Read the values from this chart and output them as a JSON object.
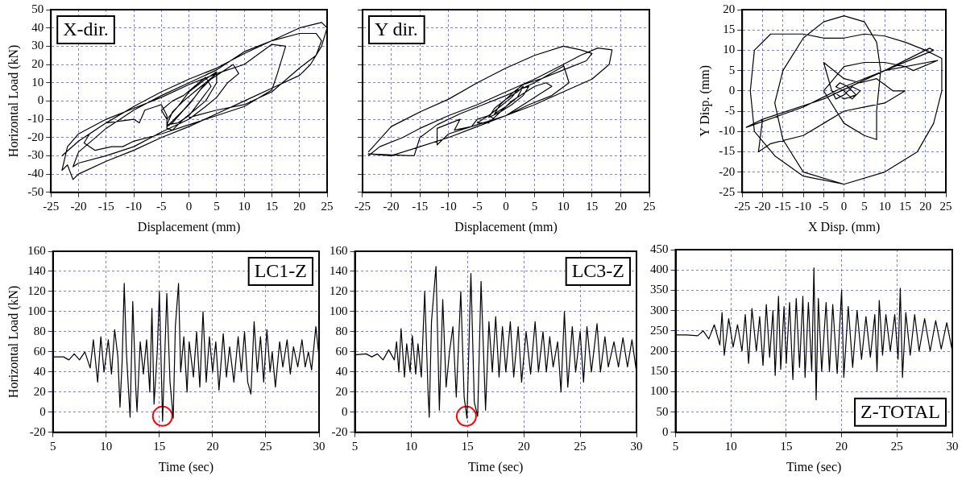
{
  "chart_data": [
    {
      "type": "line",
      "xlabel": "Displacement (mm)",
      "ylabel": "Horizontal Load (kN)",
      "annotations": [
        "X-dir."
      ],
      "xlim": [
        -25,
        25
      ],
      "xticks": [
        -25,
        -20,
        -15,
        -10,
        -5,
        0,
        5,
        10,
        15,
        20,
        25
      ],
      "ylim": [
        -50,
        50
      ],
      "yticks": [
        -50,
        -40,
        -30,
        -20,
        -10,
        0,
        10,
        20,
        30,
        40,
        50
      ],
      "grid": true,
      "marker": "none",
      "series": [
        {
          "color": "#000000",
          "x": [
            -23,
            -20,
            -15,
            -10,
            -5,
            0,
            5,
            10,
            15,
            20,
            24,
            25,
            24,
            22,
            20,
            15,
            10,
            5,
            0,
            -5,
            -10,
            -15,
            -20,
            -21,
            -22,
            -23,
            -22,
            -20,
            -15,
            -10,
            -5,
            0,
            5,
            10,
            15,
            17.5,
            16,
            15,
            10,
            5,
            0,
            -5,
            -10,
            -12,
            -14,
            -17,
            -19,
            -18,
            -15,
            -10,
            -9,
            -8,
            -6,
            -5,
            -4,
            -4,
            -3,
            -1,
            1,
            3,
            4,
            5,
            5,
            3,
            1,
            -1,
            -3,
            -4,
            -2,
            0,
            2,
            4,
            5,
            3,
            0,
            -2,
            -4,
            -5,
            -3,
            -1,
            1,
            3,
            4,
            2,
            0,
            -2,
            -4,
            -3,
            -1,
            1,
            3,
            5,
            8,
            9,
            7,
            5,
            3,
            0,
            -5,
            -10,
            -15,
            -20,
            -21,
            -20,
            -15,
            -10,
            -5,
            0,
            5,
            10,
            15,
            20,
            23,
            24,
            23,
            20,
            15,
            10,
            5,
            0
          ],
          "values": [
            -30,
            -22,
            -12,
            -3,
            5,
            12,
            18,
            26,
            33,
            40,
            43,
            40,
            30,
            20,
            14,
            7,
            0,
            -7,
            -14,
            -20,
            -27,
            -33,
            -40,
            -43,
            -35,
            -38,
            -25,
            -18,
            -10,
            -4,
            2,
            9,
            15,
            20,
            31,
            30,
            15,
            6,
            -3,
            -8,
            -13,
            -18,
            -22,
            -25,
            -25,
            -27,
            -23,
            -18,
            -12,
            -10,
            -12,
            -5,
            -3,
            -2,
            -8,
            -15,
            -16,
            -10,
            -5,
            0,
            5,
            10,
            15,
            10,
            2,
            -5,
            -12,
            -14,
            -8,
            -2,
            6,
            12,
            16,
            12,
            5,
            -3,
            -10,
            -5,
            0,
            3,
            8,
            13,
            8,
            0,
            -8,
            -12,
            -13,
            -6,
            0,
            5,
            10,
            14,
            20,
            15,
            10,
            2,
            -3,
            -10,
            -17,
            -25,
            -30,
            -34,
            -36,
            -28,
            -15,
            -5,
            3,
            10,
            17,
            27,
            33,
            37,
            37,
            33,
            25,
            18,
            5,
            -2,
            -5,
            -9
          ]
        }
      ]
    },
    {
      "type": "line",
      "xlabel": "Displacement (mm)",
      "annotations": [
        "Y dir."
      ],
      "xlim": [
        -25,
        25
      ],
      "xticks": [
        -25,
        -20,
        -15,
        -10,
        -5,
        0,
        5,
        10,
        15,
        20,
        25
      ],
      "ylim": [
        -50,
        50
      ],
      "yticks": [
        -50,
        -40,
        -30,
        -20,
        -10,
        0,
        10,
        20,
        30,
        40,
        50
      ],
      "tick_labels": "x",
      "grid": true,
      "marker": "none",
      "series": [
        {
          "color": "#000000",
          "x": [
            -24,
            -22,
            -18,
            -15,
            -10,
            -5,
            0,
            5,
            10,
            13,
            16,
            18.5,
            18,
            15,
            10,
            5,
            0,
            -5,
            -10,
            -15,
            -20,
            -24,
            -16,
            -15,
            -12,
            -8,
            -4,
            0,
            5,
            10,
            10,
            11,
            8,
            4,
            0,
            -5,
            -10,
            -12,
            -12,
            -8,
            -9,
            -6,
            -5,
            -3,
            -5,
            -3,
            -1,
            1,
            3,
            5,
            7,
            8,
            6,
            4,
            2,
            0,
            -2,
            -3,
            -1,
            1,
            2,
            4,
            3,
            1,
            -1,
            -3,
            -2,
            0,
            2,
            3,
            2,
            0,
            -2,
            -1,
            1,
            3,
            6,
            10,
            14,
            15,
            13,
            10,
            5,
            0,
            -5,
            -10,
            -15,
            -20,
            -24
          ],
          "values": [
            -30,
            -25,
            -20,
            -15,
            -8,
            -2,
            5,
            12,
            20,
            25,
            29,
            28,
            20,
            12,
            5,
            -2,
            -8,
            -14,
            -20,
            -25,
            -30,
            -29,
            -30,
            -20,
            -13,
            -7,
            -2,
            3,
            10,
            19,
            20,
            10,
            3,
            -2,
            -8,
            -13,
            -18,
            -24,
            -15,
            -10,
            -16,
            -14,
            -10,
            -8,
            -12,
            -12,
            -6,
            0,
            4,
            8,
            10,
            8,
            4,
            0,
            -4,
            -8,
            -10,
            -8,
            -3,
            2,
            6,
            8,
            3,
            -2,
            -6,
            -9,
            -4,
            1,
            5,
            8,
            2,
            -3,
            -7,
            -2,
            4,
            9,
            12,
            17,
            22,
            26,
            28,
            30,
            25,
            18,
            10,
            1,
            -6,
            -14,
            -28
          ]
        }
      ]
    },
    {
      "type": "line",
      "xlabel": "X Disp. (mm)",
      "ylabel": "Y Disp. (mm)",
      "xlim": [
        -25,
        25
      ],
      "xticks": [
        -25,
        -20,
        -15,
        -10,
        -5,
        0,
        5,
        10,
        15,
        20,
        25
      ],
      "ylim": [
        -25,
        20
      ],
      "yticks": [
        -25,
        -20,
        -15,
        -10,
        -5,
        0,
        5,
        10,
        15,
        20
      ],
      "grid": true,
      "marker": "none",
      "series": [
        {
          "color": "#000000",
          "x": [
            0,
            -10,
            -17,
            -22,
            -23,
            -22,
            -18,
            -10,
            -5,
            0,
            5,
            10,
            15,
            20,
            24,
            24,
            22,
            18,
            10,
            0,
            -10,
            -15,
            -17,
            -15,
            -10,
            -5,
            0,
            5,
            8,
            9,
            8,
            8,
            5,
            0,
            -5,
            0,
            5,
            10,
            15,
            17,
            23,
            10,
            -5,
            -20,
            -24,
            -10,
            0,
            10,
            22,
            21,
            10,
            -5,
            -20,
            -21,
            -18,
            -10,
            -5,
            0,
            5,
            10,
            15,
            12,
            8,
            4,
            0,
            -5,
            -3,
            -2,
            0,
            2,
            4,
            2,
            0,
            -2,
            -1,
            1,
            3,
            0,
            -3
          ],
          "values": [
            -23,
            -21,
            -16,
            -10,
            0,
            10,
            14,
            14,
            13,
            13,
            14,
            13.5,
            12,
            10,
            8,
            0,
            -8,
            -15,
            -20,
            -23,
            -20,
            -12,
            -3,
            5,
            13,
            17,
            18.5,
            17,
            12,
            5,
            -5,
            -12,
            -11,
            -8,
            0,
            6,
            7,
            7,
            6,
            5,
            7.5,
            5,
            -2,
            -7,
            -9,
            -4,
            1,
            5,
            10,
            10.5,
            5,
            -2,
            -7,
            -15,
            -13,
            -11,
            -8,
            -5,
            -4,
            -3,
            0,
            0,
            3,
            2,
            3,
            7,
            0,
            -2,
            -1,
            1,
            0,
            -2,
            0,
            1,
            2,
            1,
            -1,
            -2,
            0
          ]
        }
      ]
    },
    {
      "type": "line",
      "xlabel": "Time (sec)",
      "ylabel": "Horizontal Load (kN)",
      "annotations": [
        "LC1-Z"
      ],
      "xlim": [
        5,
        30
      ],
      "xticks": [
        5,
        10,
        15,
        20,
        25,
        30
      ],
      "ylim": [
        -20,
        160
      ],
      "yticks": [
        -20,
        0,
        20,
        40,
        60,
        80,
        100,
        120,
        140,
        160
      ],
      "grid": true,
      "marker": "none",
      "series": [
        {
          "color": "#000000",
          "x": [
            5,
            6,
            6.5,
            7,
            7.5,
            8,
            8.5,
            8.8,
            9.2,
            9.5,
            9.8,
            10.2,
            10.5,
            10.8,
            11.1,
            11.3,
            11.5,
            11.7,
            11.9,
            12.1,
            12.25,
            12.5,
            12.8,
            12.9,
            13.2,
            13.5,
            13.8,
            14.1,
            14.3,
            14.5,
            14.8,
            15,
            15.3,
            15.5,
            15.7,
            16,
            16.3,
            16.5,
            16.8,
            17,
            17.3,
            17.6,
            17.8,
            18.2,
            18.5,
            18.8,
            19.1,
            19.4,
            19.7,
            20,
            20.3,
            20.6,
            21,
            21.3,
            21.6,
            22,
            22.4,
            22.7,
            23,
            23.3,
            23.6,
            23.9,
            24.2,
            24.5,
            24.8,
            25.1,
            25.4,
            25.6,
            25.9,
            26.3,
            26.6,
            27,
            27.3,
            27.6,
            28,
            28.4,
            28.7,
            29,
            29.3,
            29.7,
            30
          ],
          "values": [
            55,
            55,
            52,
            58,
            52,
            60,
            44,
            72,
            30,
            75,
            40,
            72,
            38,
            82,
            55,
            5,
            50,
            128,
            60,
            22,
            -5,
            110,
            20,
            1,
            70,
            38,
            72,
            20,
            103,
            8,
            60,
            120,
            -9,
            55,
            118,
            30,
            -6,
            85,
            128,
            40,
            75,
            20,
            70,
            35,
            80,
            25,
            100,
            30,
            75,
            40,
            70,
            22,
            78,
            35,
            65,
            30,
            75,
            40,
            80,
            30,
            18,
            90,
            40,
            75,
            30,
            82,
            40,
            60,
            25,
            70,
            45,
            72,
            38,
            65,
            45,
            72,
            45,
            60,
            42,
            85,
            55
          ]
        },
        {
          "type": "scatter",
          "color": "#ff0000",
          "marker": "circle",
          "x": [
            15.3
          ],
          "values": [
            -4
          ]
        }
      ]
    },
    {
      "type": "line",
      "xlabel": "Time (sec)",
      "annotations": [
        "LC3-Z"
      ],
      "xlim": [
        5,
        30
      ],
      "xticks": [
        5,
        10,
        15,
        20,
        25,
        30
      ],
      "ylim": [
        -20,
        160
      ],
      "yticks": [
        -20,
        0,
        20,
        40,
        60,
        80,
        100,
        120,
        140,
        160
      ],
      "grid": true,
      "marker": "none",
      "series": [
        {
          "color": "#000000",
          "x": [
            5,
            6,
            6.5,
            7,
            7.5,
            8,
            8.5,
            8.7,
            8.9,
            9.1,
            9.4,
            9.6,
            9.9,
            10.1,
            10.4,
            10.6,
            10.9,
            11.2,
            11.5,
            11.6,
            11.8,
            12.2,
            12.5,
            12.8,
            13.1,
            13.4,
            13.7,
            14,
            14.4,
            14.7,
            14.95,
            15.3,
            15.6,
            15.9,
            16.2,
            16.6,
            16.9,
            17.2,
            17.5,
            17.8,
            18.1,
            18.4,
            18.8,
            19.1,
            19.5,
            19.8,
            20.2,
            20.6,
            21,
            21.3,
            21.7,
            22,
            22.3,
            22.6,
            23,
            23.3,
            23.6,
            23.9,
            24.3,
            24.6,
            25,
            25.3,
            25.6,
            26,
            26.5,
            26.8,
            27.2,
            27.5,
            28,
            28.4,
            28.8,
            29.2,
            29.6,
            30
          ],
          "values": [
            57,
            58,
            55,
            58,
            52,
            62,
            52,
            70,
            40,
            83,
            35,
            68,
            40,
            76,
            38,
            68,
            35,
            120,
            18,
            -5,
            90,
            145,
            2,
            112,
            25,
            60,
            85,
            15,
            120,
            15,
            -6,
            138,
            10,
            -4,
            130,
            2,
            90,
            40,
            95,
            35,
            85,
            40,
            90,
            35,
            85,
            30,
            80,
            38,
            90,
            40,
            80,
            40,
            75,
            45,
            70,
            20,
            100,
            25,
            85,
            40,
            80,
            30,
            85,
            40,
            88,
            40,
            75,
            45,
            70,
            45,
            74,
            45,
            72,
            40
          ]
        },
        {
          "type": "scatter",
          "color": "#ff0000",
          "marker": "circle",
          "x": [
            14.9
          ],
          "values": [
            -4
          ]
        }
      ]
    },
    {
      "type": "line",
      "xlabel": "Time (sec)",
      "annotations": [
        "Z-TOTAL"
      ],
      "xlim": [
        5,
        30
      ],
      "xticks": [
        5,
        10,
        15,
        20,
        25,
        30
      ],
      "ylim": [
        0,
        450
      ],
      "yticks": [
        0,
        50,
        100,
        150,
        200,
        250,
        300,
        350,
        400,
        450
      ],
      "grid": true,
      "marker": "none",
      "series": [
        {
          "color": "#000000",
          "x": [
            5,
            6,
            7,
            7.5,
            8,
            8.5,
            9,
            9.2,
            9.4,
            9.8,
            10.2,
            10.6,
            11,
            11.3,
            11.6,
            11.9,
            12.3,
            12.6,
            12.9,
            13.2,
            13.5,
            13.8,
            14,
            14.3,
            14.5,
            14.8,
            15,
            15.3,
            15.6,
            15.9,
            16.2,
            16.5,
            16.7,
            17,
            17.3,
            17.5,
            17.7,
            17.9,
            18.2,
            18.6,
            18.9,
            19.2,
            19.6,
            20,
            20.2,
            20.6,
            21,
            21.4,
            21.8,
            22.2,
            22.6,
            23,
            23.2,
            23.4,
            23.7,
            24,
            24.4,
            24.8,
            25.1,
            25.3,
            25.5,
            25.8,
            26.2,
            26.6,
            27,
            27.5,
            28,
            28.5,
            29,
            29.5,
            30
          ],
          "values": [
            240,
            240,
            238,
            250,
            230,
            265,
            215,
            295,
            190,
            280,
            210,
            265,
            200,
            290,
            170,
            305,
            200,
            285,
            165,
            315,
            185,
            300,
            140,
            335,
            155,
            310,
            170,
            320,
            130,
            330,
            160,
            335,
            135,
            320,
            150,
            405,
            80,
            330,
            150,
            320,
            150,
            315,
            145,
            350,
            135,
            310,
            160,
            300,
            180,
            285,
            185,
            290,
            150,
            325,
            190,
            290,
            200,
            290,
            180,
            355,
            135,
            295,
            190,
            290,
            200,
            280,
            200,
            275,
            205,
            270,
            200
          ]
        }
      ]
    }
  ]
}
